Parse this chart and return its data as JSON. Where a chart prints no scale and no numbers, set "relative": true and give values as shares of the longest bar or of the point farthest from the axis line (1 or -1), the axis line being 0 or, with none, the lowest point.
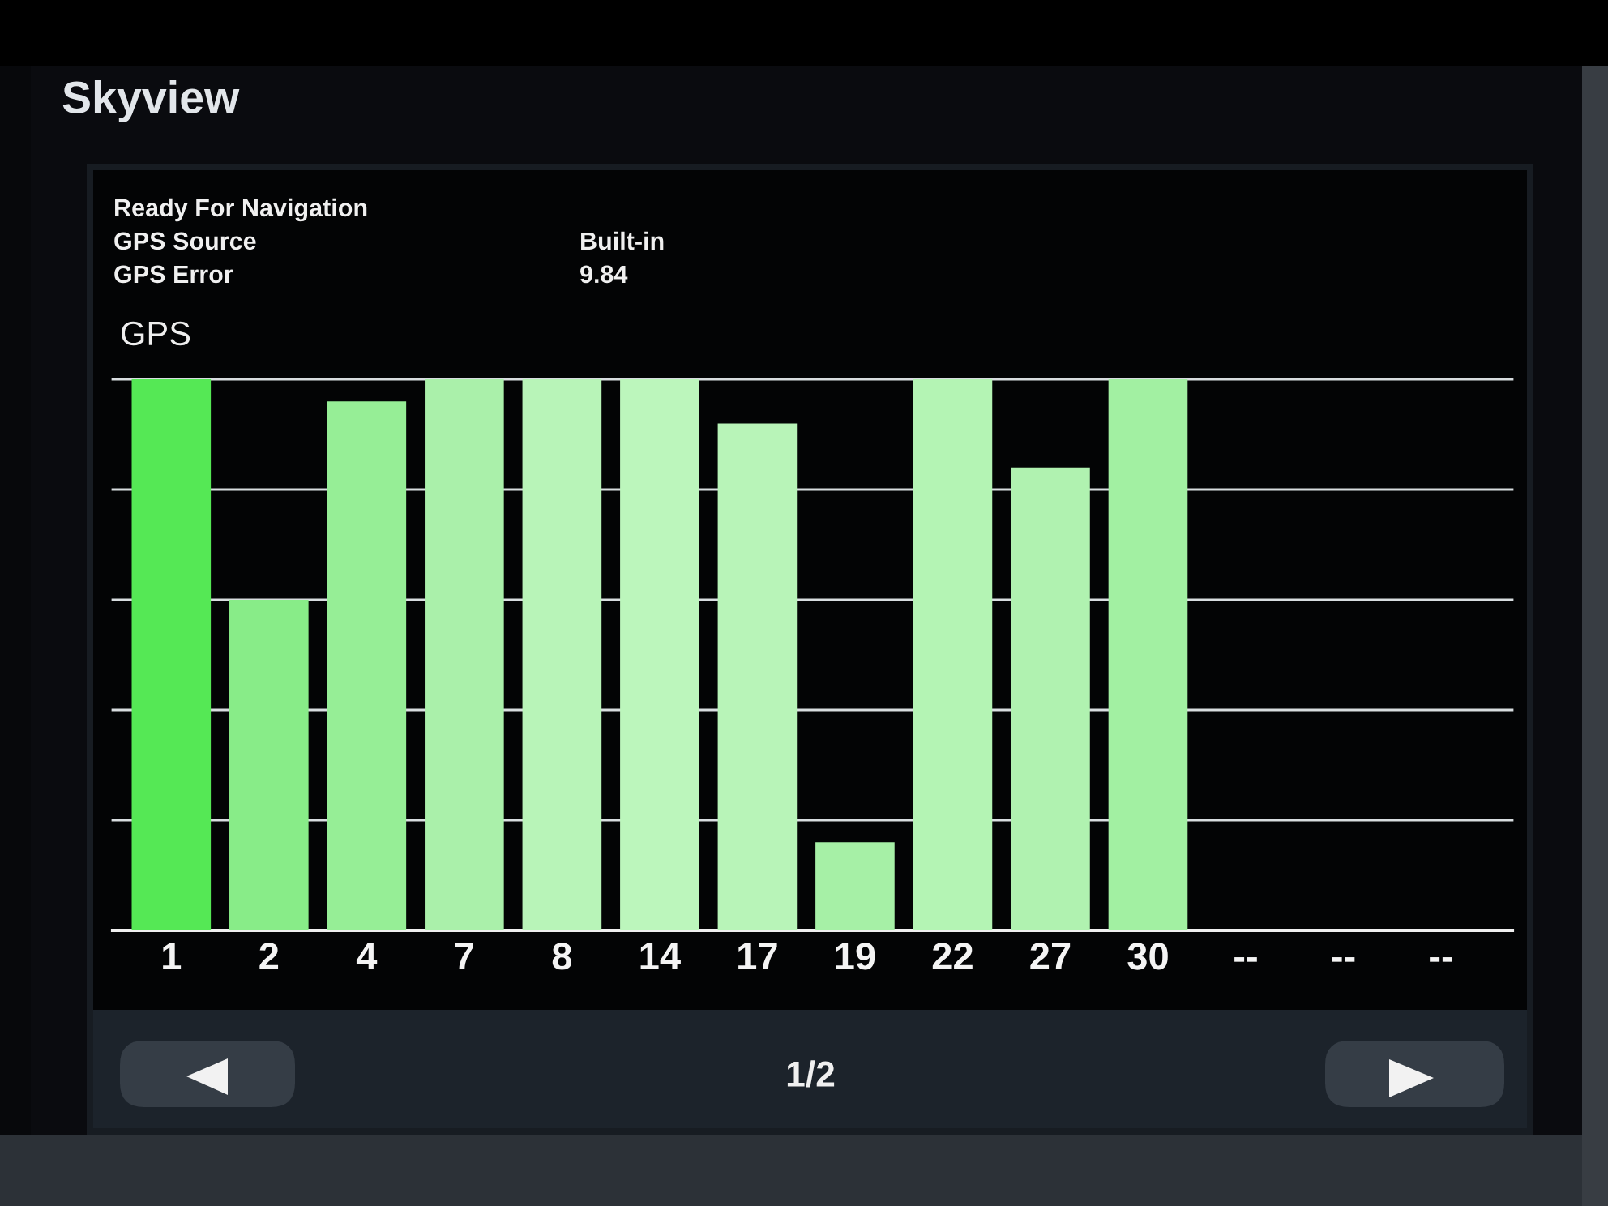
{
  "chart_data": {
    "type": "bar",
    "title": "Skyview",
    "subtitle": "GPS",
    "categories": [
      "1",
      "2",
      "4",
      "7",
      "8",
      "14",
      "17",
      "19",
      "22",
      "27",
      "30",
      "--",
      "--",
      "--"
    ],
    "values": [
      1,
      0.6,
      0.96,
      1,
      1,
      1,
      0.92,
      0.16,
      1,
      0.84,
      1,
      null,
      null,
      null
    ],
    "colors": [
      "#55e855",
      "#88ec88",
      "#96ee96",
      "#aaf0aa",
      "#b8f4b8",
      "#bcf6bc",
      "#b8f4b8",
      "#a6f0a6",
      "#b4f4b4",
      "#b0f2b0",
      "#a2f0a2",
      null,
      null,
      null
    ],
    "relative": true,
    "grid": "y",
    "annotations": [
      "Ready For Navigation",
      "GPS Source",
      "Built-in",
      "GPS Error",
      "9.84",
      "1/2"
    ]
  }
}
